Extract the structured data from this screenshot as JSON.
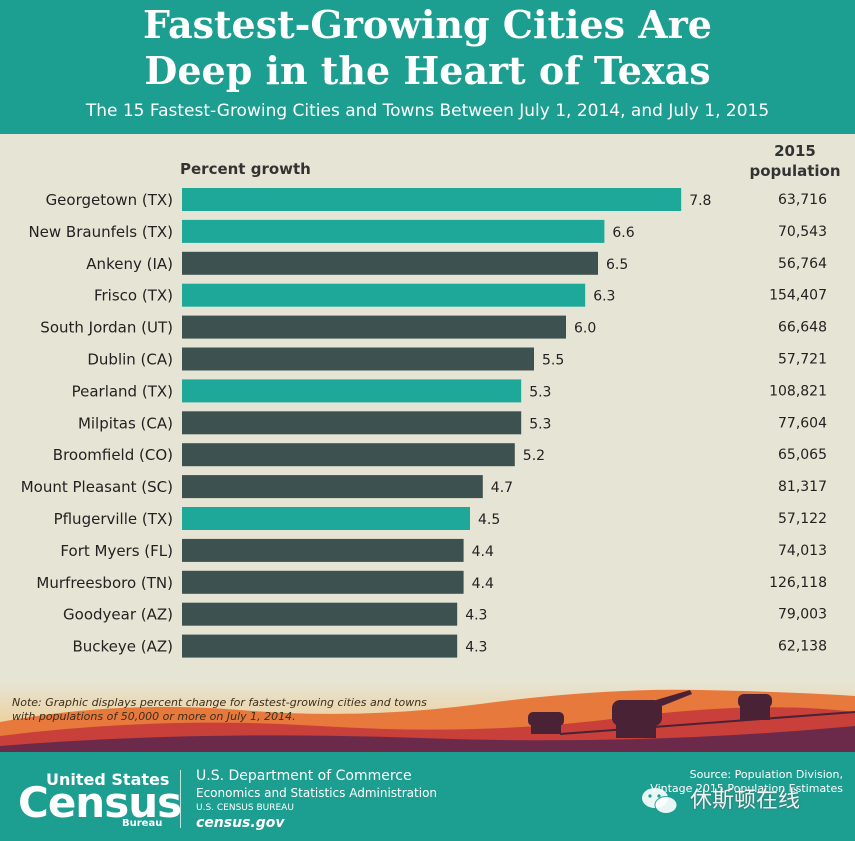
{
  "title_line1": "Fastest-Growing Cities Are",
  "title_line2": "Deep in the Heart of Texas",
  "subtitle": "The 15 Fastest-Growing Cities and Towns Between July 1, 2014, and July 1, 2015",
  "chart_data": {
    "type": "bar",
    "orientation": "horizontal",
    "value_header": "Percent growth",
    "population_header_line1": "2015",
    "population_header_line2": "population",
    "xlim": [
      0,
      8
    ],
    "grid": false,
    "colors": {
      "texas": "#1ea89a",
      "other": "#3d5250"
    },
    "rows": [
      {
        "city": "Georgetown (TX)",
        "value": 7.8,
        "label": "7.8",
        "population": "63,716",
        "texas": true
      },
      {
        "city": "New Braunfels (TX)",
        "value": 6.6,
        "label": "6.6",
        "population": "70,543",
        "texas": true
      },
      {
        "city": "Ankeny (IA)",
        "value": 6.5,
        "label": "6.5",
        "population": "56,764",
        "texas": false
      },
      {
        "city": "Frisco (TX)",
        "value": 6.3,
        "label": "6.3",
        "population": "154,407",
        "texas": true
      },
      {
        "city": "South Jordan (UT)",
        "value": 6.0,
        "label": "6.0",
        "population": "66,648",
        "texas": false
      },
      {
        "city": "Dublin (CA)",
        "value": 5.5,
        "label": "5.5",
        "population": "57,721",
        "texas": false
      },
      {
        "city": "Pearland (TX)",
        "value": 5.3,
        "label": "5.3",
        "population": "108,821",
        "texas": true
      },
      {
        "city": "Milpitas (CA)",
        "value": 5.3,
        "label": "5.3",
        "population": "77,604",
        "texas": false
      },
      {
        "city": "Broomfield (CO)",
        "value": 5.2,
        "label": "5.2",
        "population": "65,065",
        "texas": false
      },
      {
        "city": "Mount Pleasant (SC)",
        "value": 4.7,
        "label": "4.7",
        "population": "81,317",
        "texas": false
      },
      {
        "city": "Pflugerville (TX)",
        "value": 4.5,
        "label": "4.5",
        "population": "57,122",
        "texas": true
      },
      {
        "city": "Fort Myers (FL)",
        "value": 4.4,
        "label": "4.4",
        "population": "74,013",
        "texas": false
      },
      {
        "city": "Murfreesboro (TN)",
        "value": 4.4,
        "label": "4.4",
        "population": "126,118",
        "texas": false
      },
      {
        "city": "Goodyear (AZ)",
        "value": 4.3,
        "label": "4.3",
        "population": "79,003",
        "texas": false
      },
      {
        "city": "Buckeye (AZ)",
        "value": 4.3,
        "label": "4.3",
        "population": "62,138",
        "texas": false
      }
    ]
  },
  "note": "Note: Graphic displays percent change for fastest-growing cities and towns with populations of 50,000 or more on July 1, 2014.",
  "footer": {
    "logo_top": "United States",
    "logo_main": "Census",
    "logo_sub": "Bureau",
    "dept": "U.S. Department of Commerce",
    "admin": "Economics and Statistics Administration",
    "bureau": "U.S. CENSUS BUREAU",
    "site": "census.gov",
    "source_line1": "Source: Population Division,",
    "source_line2": "Vintage 2015 Population Estimates",
    "watermark": "休斯顿在线",
    "watermark_icon": "wechat-icon"
  }
}
